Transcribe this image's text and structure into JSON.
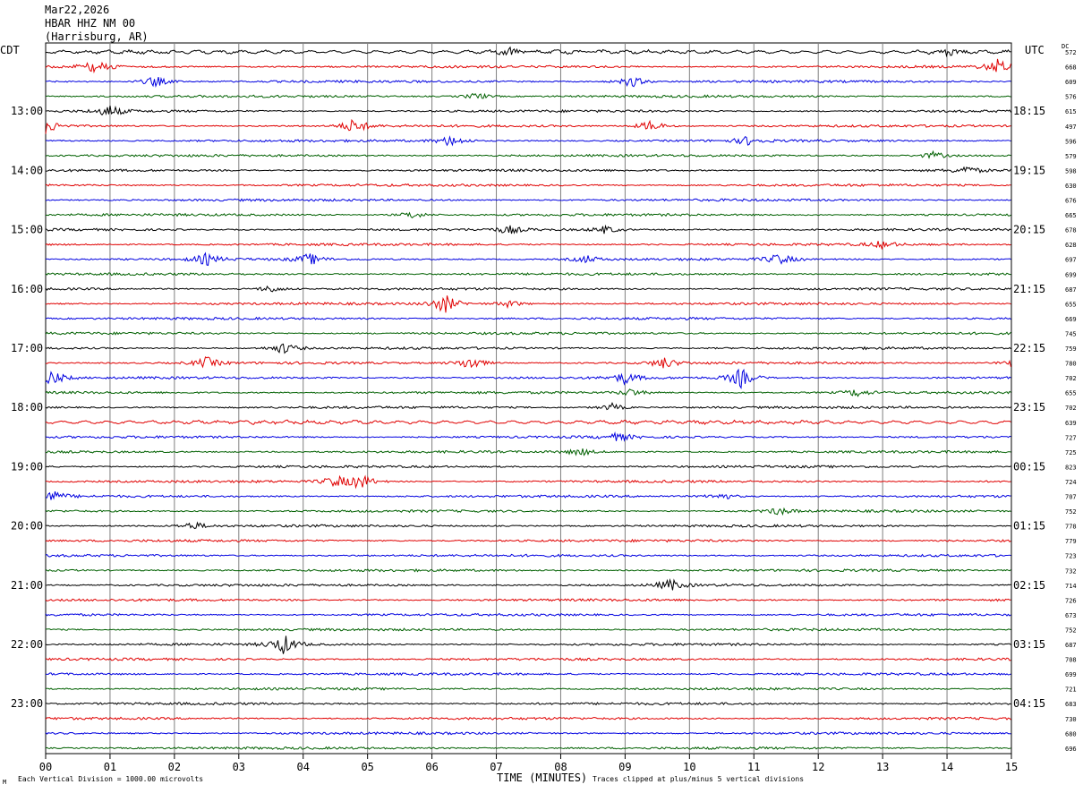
{
  "header": {
    "date": "Mar22,2026",
    "station": "HBAR HHZ NM 00",
    "location": "(Harrisburg, AR)"
  },
  "left_axis_label": "CDT",
  "right_axis_label": "UTC",
  "dc_label": "DC",
  "footer": {
    "left": "Each Vertical Division = 1000.00 microvolts",
    "middle": "TIME (MINUTES)",
    "right": "Traces clipped at plus/minus 5 vertical divisions",
    "corner_mark": "M"
  },
  "colors": {
    "trace_cycle": [
      "#000000",
      "#e00000",
      "#0000e0",
      "#006000"
    ],
    "grid": "#808080",
    "frame": "#000000"
  },
  "chart_data": {
    "type": "line",
    "title": "",
    "xlabel": "TIME (MINUTES)",
    "ylabel": "",
    "x_range": [
      0,
      15
    ],
    "x_ticks": [
      "00",
      "01",
      "02",
      "03",
      "04",
      "05",
      "06",
      "07",
      "08",
      "09",
      "10",
      "11",
      "12",
      "13",
      "14",
      "15"
    ],
    "grid": true,
    "minutes_per_trace": 15,
    "left_time_labels": [
      "13:00",
      "14:00",
      "15:00",
      "16:00",
      "17:00",
      "18:00",
      "19:00",
      "20:00",
      "21:00",
      "22:00",
      "23:00"
    ],
    "right_time_labels": [
      "18:15",
      "19:15",
      "20:15",
      "21:15",
      "22:15",
      "23:15",
      "00:15",
      "01:15",
      "02:15",
      "03:15",
      "04:15"
    ],
    "dc_offsets": [
      572,
      668,
      609,
      576,
      615,
      497,
      596,
      579,
      598,
      630,
      676,
      665,
      678,
      628,
      697,
      699,
      687,
      655,
      669,
      745,
      759,
      780,
      702,
      655,
      702,
      639,
      727,
      725,
      823,
      724,
      707,
      752,
      778,
      779,
      723,
      732,
      714,
      726,
      673,
      752,
      687,
      708,
      699,
      721,
      683,
      730,
      680,
      696
    ],
    "events": [
      {
        "trace": 0,
        "minute": 7.2,
        "amplitude": 2
      },
      {
        "trace": 0,
        "minute": 14.0,
        "amplitude": 2
      },
      {
        "trace": 1,
        "minute": 0.8,
        "amplitude": 4
      },
      {
        "trace": 1,
        "minute": 14.8,
        "amplitude": 4
      },
      {
        "trace": 2,
        "minute": 1.7,
        "amplitude": 3
      },
      {
        "trace": 2,
        "minute": 9.1,
        "amplitude": 3
      },
      {
        "trace": 3,
        "minute": 6.7,
        "amplitude": 2
      },
      {
        "trace": 4,
        "minute": 1.0,
        "amplitude": 3
      },
      {
        "trace": 5,
        "minute": 0.0,
        "amplitude": 4
      },
      {
        "trace": 5,
        "minute": 4.8,
        "amplitude": 4
      },
      {
        "trace": 5,
        "minute": 9.4,
        "amplitude": 3
      },
      {
        "trace": 6,
        "minute": 6.3,
        "amplitude": 3
      },
      {
        "trace": 6,
        "minute": 10.9,
        "amplitude": 2
      },
      {
        "trace": 7,
        "minute": 13.8,
        "amplitude": 2
      },
      {
        "trace": 8,
        "minute": 14.3,
        "amplitude": 2
      },
      {
        "trace": 11,
        "minute": 5.7,
        "amplitude": 2
      },
      {
        "trace": 12,
        "minute": 7.2,
        "amplitude": 2
      },
      {
        "trace": 12,
        "minute": 8.7,
        "amplitude": 2
      },
      {
        "trace": 13,
        "minute": 13.0,
        "amplitude": 2
      },
      {
        "trace": 14,
        "minute": 2.5,
        "amplitude": 3
      },
      {
        "trace": 14,
        "minute": 4.1,
        "amplitude": 3
      },
      {
        "trace": 14,
        "minute": 8.4,
        "amplitude": 2
      },
      {
        "trace": 14,
        "minute": 11.4,
        "amplitude": 3
      },
      {
        "trace": 16,
        "minute": 3.5,
        "amplitude": 2
      },
      {
        "trace": 17,
        "minute": 6.2,
        "amplitude": 5
      },
      {
        "trace": 17,
        "minute": 7.2,
        "amplitude": 2
      },
      {
        "trace": 20,
        "minute": 3.7,
        "amplitude": 3
      },
      {
        "trace": 21,
        "minute": 2.5,
        "amplitude": 3
      },
      {
        "trace": 21,
        "minute": 6.6,
        "amplitude": 4
      },
      {
        "trace": 21,
        "minute": 9.6,
        "amplitude": 3
      },
      {
        "trace": 21,
        "minute": 15.0,
        "amplitude": 2
      },
      {
        "trace": 22,
        "minute": 0.1,
        "amplitude": 4
      },
      {
        "trace": 22,
        "minute": 9.0,
        "amplitude": 3
      },
      {
        "trace": 22,
        "minute": 10.8,
        "amplitude": 5
      },
      {
        "trace": 23,
        "minute": 9.1,
        "amplitude": 2
      },
      {
        "trace": 23,
        "minute": 12.6,
        "amplitude": 2
      },
      {
        "trace": 24,
        "minute": 8.8,
        "amplitude": 2
      },
      {
        "trace": 26,
        "minute": 8.9,
        "amplitude": 2
      },
      {
        "trace": 27,
        "minute": 8.3,
        "amplitude": 2
      },
      {
        "trace": 29,
        "minute": 4.9,
        "amplitude": 4
      },
      {
        "trace": 29,
        "minute": 4.5,
        "amplitude": 3
      },
      {
        "trace": 30,
        "minute": 0.1,
        "amplitude": 3
      },
      {
        "trace": 30,
        "minute": 10.5,
        "amplitude": 2
      },
      {
        "trace": 31,
        "minute": 11.4,
        "amplitude": 2
      },
      {
        "trace": 32,
        "minute": 2.3,
        "amplitude": 2
      },
      {
        "trace": 36,
        "minute": 9.7,
        "amplitude": 3
      },
      {
        "trace": 40,
        "minute": 3.7,
        "amplitude": 5
      }
    ]
  }
}
